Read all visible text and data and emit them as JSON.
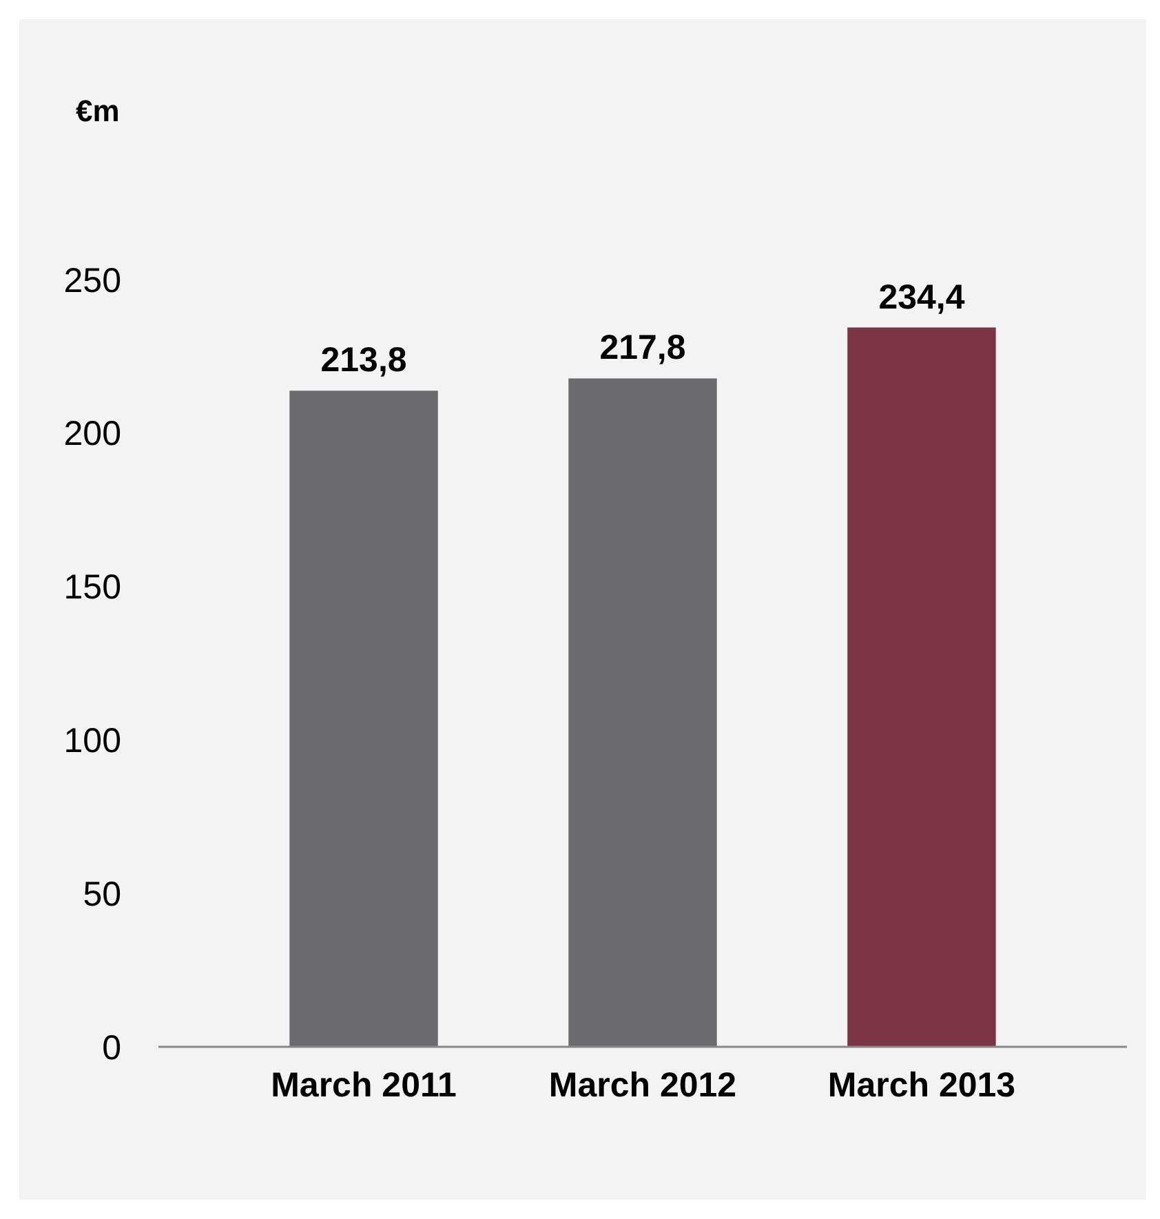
{
  "chart_data": {
    "type": "bar",
    "ylabel": "€m",
    "categories": [
      "March 2011",
      "March 2012",
      "March 2013"
    ],
    "values": [
      213.8,
      217.8,
      234.4
    ],
    "colors": [
      "#6b6b6d",
      "#6b6b6d",
      "#7b3444"
    ],
    "value_labels": [
      "213,8",
      "217,8",
      "234,4"
    ],
    "ylim": [
      0,
      250
    ],
    "yticks": [
      0,
      50,
      100,
      150,
      200,
      250
    ],
    "grid": false
  }
}
